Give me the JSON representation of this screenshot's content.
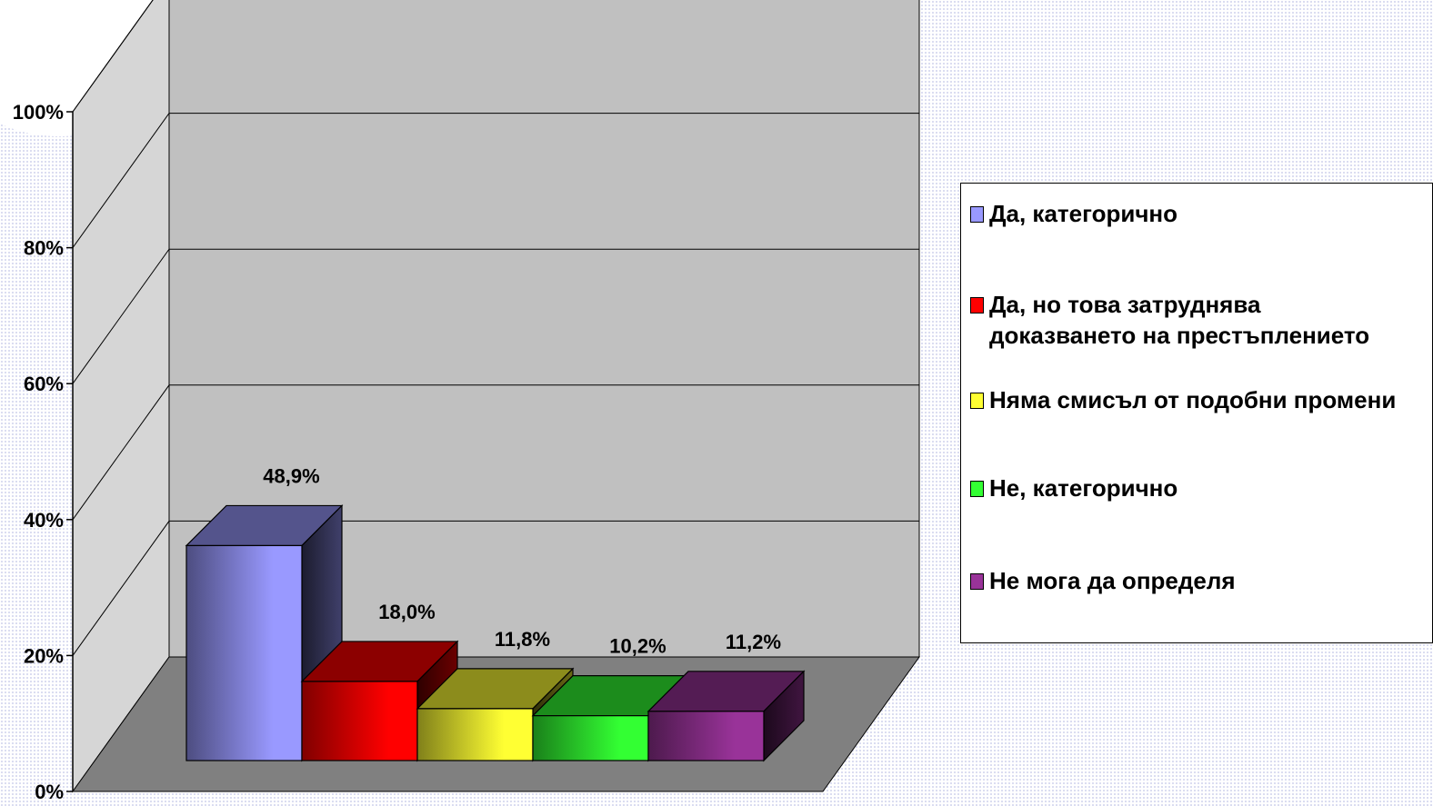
{
  "chart_data": {
    "type": "bar",
    "categories": [
      "Да, категорично",
      "Да, но това затруднява доказването на престъплението",
      "Няма смисъл от подобни промени",
      "Не, категорично",
      "Не мога да определя"
    ],
    "values": [
      48.9,
      18.0,
      11.8,
      10.2,
      11.2
    ],
    "data_labels": [
      "48,9%",
      "18,0%",
      "11,8%",
      "10,2%",
      "11,2%"
    ],
    "colors": [
      "#9999ff",
      "#ff0000",
      "#ffff33",
      "#33ff33",
      "#993399"
    ],
    "ylim": [
      0,
      100
    ],
    "yticks": [
      0,
      20,
      40,
      60,
      80,
      100
    ],
    "ytick_labels": [
      "0%",
      "20%",
      "40%",
      "60%",
      "80%",
      "100%"
    ],
    "grid": true,
    "legend_position": "right",
    "title": "",
    "xlabel": "",
    "ylabel": ""
  },
  "legend": {
    "items": [
      {
        "lines": [
          "Да, категорично"
        ],
        "color": "#9999ff"
      },
      {
        "lines": [
          "Да, но това затруднява",
          "доказването на престъплението"
        ],
        "color": "#ff0000"
      },
      {
        "lines": [
          "Няма смисъл от подобни промени"
        ],
        "color": "#ffff33"
      },
      {
        "lines": [
          "Не, категорично"
        ],
        "color": "#33ff33"
      },
      {
        "lines": [
          "Не мога да определя"
        ],
        "color": "#993399"
      }
    ]
  }
}
